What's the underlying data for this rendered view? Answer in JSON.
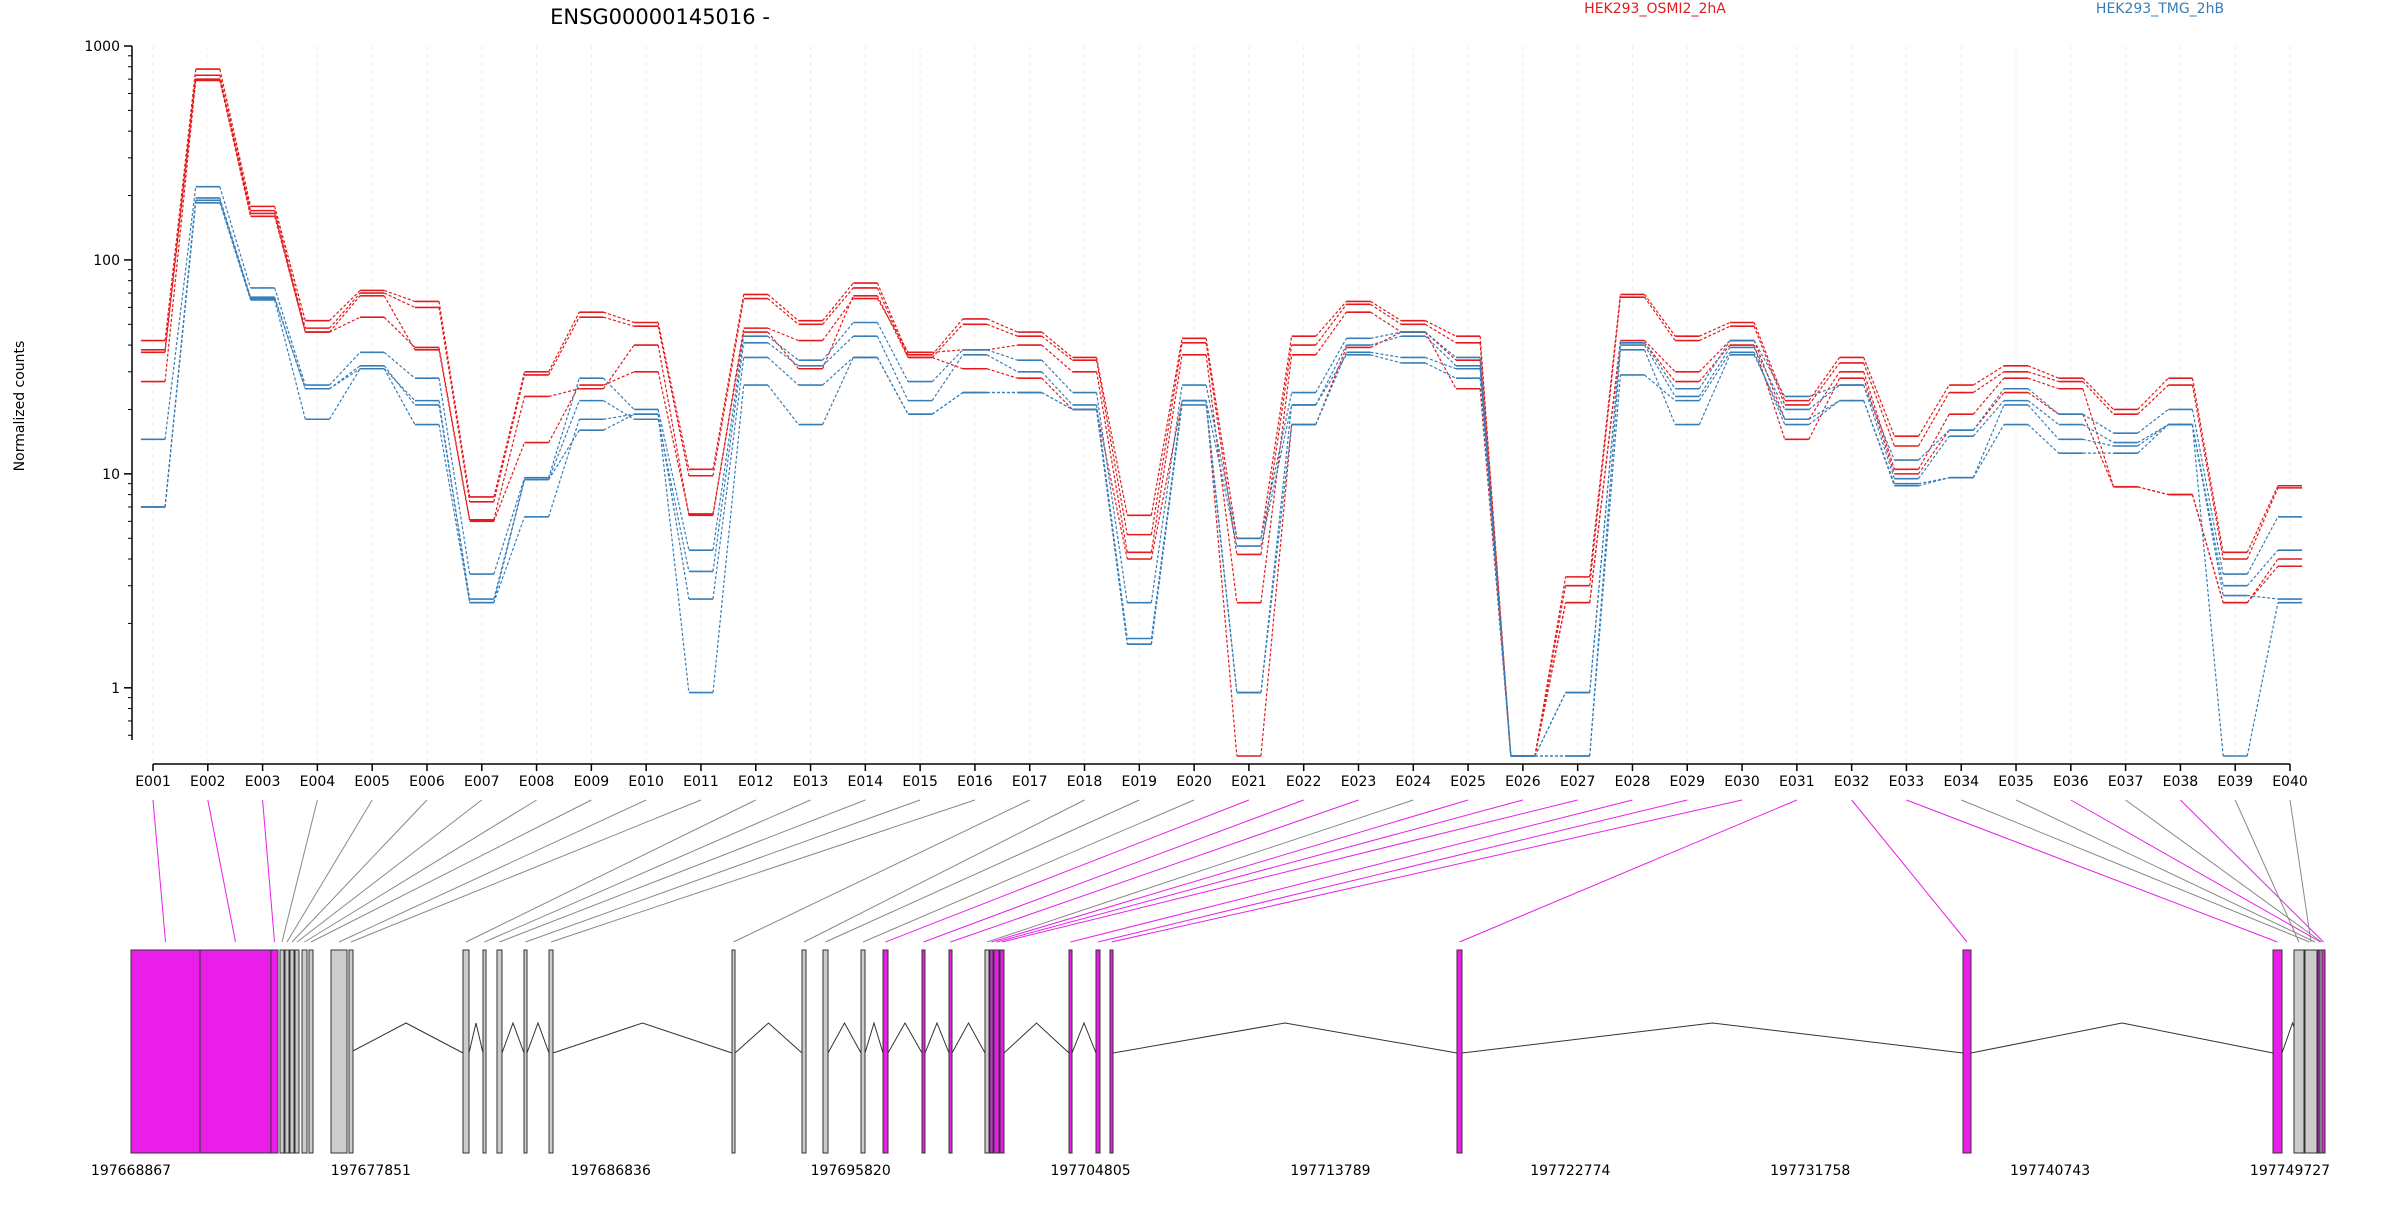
{
  "chart_data": {
    "type": "line",
    "title": "ENSG00000145016 -",
    "xlabel": "",
    "ylabel": "Normalized counts",
    "y_scale": "log",
    "ylim": [
      0.45,
      1000
    ],
    "y_ticks": [
      1,
      10,
      100,
      1000
    ],
    "y_tick_labels": [
      "1",
      "10",
      "100",
      "1000"
    ],
    "grid": "vertical lines at each exon, light",
    "legend_placement": "top, above plot",
    "categories": [
      "E001",
      "E002",
      "E003",
      "E004",
      "E005",
      "E006",
      "E007",
      "E008",
      "E009",
      "E010",
      "E011",
      "E012",
      "E013",
      "E014",
      "E015",
      "E016",
      "E017",
      "E018",
      "E019",
      "E020",
      "E021",
      "E022",
      "E023",
      "E024",
      "E025",
      "E026",
      "E027",
      "E028",
      "E029",
      "E030",
      "E031",
      "E032",
      "E033",
      "E034",
      "E035",
      "E036",
      "E037",
      "E038",
      "E039",
      "E040"
    ],
    "conditions": [
      {
        "name": "HEK293_OSMI2_2hA",
        "color": "#e41a1c"
      },
      {
        "name": "HEK293_TMG_2hB",
        "color": "#377eb8"
      }
    ],
    "series": [
      {
        "condition": "HEK293_OSMI2_2hA",
        "values": [
          42,
          780,
          178,
          52,
          72,
          64,
          7.8,
          30,
          57,
          51,
          10.5,
          69,
          52,
          78,
          36,
          53,
          46,
          35,
          6.4,
          43,
          5.0,
          44,
          64,
          52,
          44,
          0.48,
          3.3,
          69,
          44,
          51,
          22,
          35,
          15,
          26,
          32,
          28,
          20,
          28,
          4.3,
          8.8
        ]
      },
      {
        "condition": "HEK293_OSMI2_2hA",
        "values": [
          38,
          730,
          170,
          48,
          70,
          60,
          7.4,
          29,
          54,
          49,
          9.8,
          66,
          50,
          74,
          35,
          50,
          44,
          34,
          5.2,
          41,
          4.2,
          40,
          62,
          50,
          41,
          0.48,
          3.0,
          67,
          42,
          49,
          21,
          33,
          13.5,
          24,
          30,
          27,
          19,
          26,
          4.0,
          8.6
        ]
      },
      {
        "condition": "HEK293_OSMI2_2hA",
        "values": [
          27,
          690,
          160,
          46,
          54,
          39,
          6.1,
          23,
          25,
          40,
          6.4,
          48,
          42,
          66,
          37,
          38,
          40,
          30,
          4.3,
          36,
          2.5,
          36,
          57,
          46,
          25,
          0.48,
          2.5,
          42,
          30,
          42,
          18,
          30,
          10.5,
          19,
          28,
          25,
          8.7,
          8.0,
          2.5,
          4.0
        ]
      },
      {
        "condition": "HEK293_OSMI2_2hA",
        "values": [
          37,
          700,
          165,
          46,
          68,
          38,
          6.0,
          14,
          26,
          30,
          6.5,
          46,
          31,
          68,
          35,
          31,
          28,
          20,
          4.0,
          22,
          0.48,
          17,
          39,
          46,
          34,
          0.48,
          2.5,
          41,
          27,
          40,
          14.5,
          28,
          10,
          16,
          24,
          19,
          8.7,
          8.0,
          2.5,
          3.7
        ]
      },
      {
        "condition": "HEK293_TMG_2hB",
        "values": [
          14.5,
          220,
          74,
          26,
          37,
          28,
          3.4,
          9.6,
          28,
          20,
          4.4,
          44,
          34,
          51,
          27,
          38,
          34,
          24,
          2.5,
          26,
          5.0,
          24,
          43,
          46,
          35,
          0.48,
          0.95,
          41,
          25,
          42,
          23,
          26,
          11.6,
          16,
          25,
          19,
          15.5,
          20,
          3.4,
          6.3
        ]
      },
      {
        "condition": "HEK293_TMG_2hB",
        "values": [
          7.0,
          195,
          67,
          25,
          32,
          21,
          2.6,
          9.4,
          22,
          18,
          3.5,
          41,
          32,
          44,
          22,
          36,
          30,
          21,
          1.7,
          22,
          4.6,
          21,
          40,
          44,
          32,
          0.48,
          0.95,
          40,
          23,
          39,
          20,
          26,
          9.5,
          15,
          22,
          17,
          14,
          17,
          3.0,
          4.4
        ]
      },
      {
        "condition": "HEK293_TMG_2hB",
        "values": [
          7.0,
          185,
          65,
          18,
          31,
          17,
          2.5,
          6.3,
          18,
          19,
          2.6,
          35,
          26,
          35,
          19,
          24,
          24,
          20,
          1.6,
          21,
          0.95,
          17,
          37,
          35,
          31,
          0.48,
          0.48,
          38,
          17,
          36,
          18,
          22,
          9.0,
          9.6,
          17,
          12.5,
          12.5,
          17,
          0.48,
          2.5
        ]
      },
      {
        "condition": "HEK293_TMG_2hB",
        "values": [
          7.0,
          190,
          66,
          25,
          31,
          22,
          2.5,
          9.4,
          16,
          19,
          0.95,
          26,
          17,
          35,
          19,
          24,
          24,
          20,
          1.6,
          22,
          0.95,
          21,
          36,
          33,
          28,
          0.48,
          0.48,
          29,
          22,
          37,
          17,
          22,
          8.8,
          9.6,
          21,
          14.5,
          13.5,
          17,
          2.7,
          2.6
        ]
      }
    ],
    "exon_highlight_color": "#e91fe9",
    "genomic_axis_labels": [
      "197668867",
      "197677851",
      "197686836",
      "197695820",
      "197704805",
      "197713789",
      "197722774",
      "197731758",
      "197740743",
      "197749727"
    ],
    "exon_highlighted": [
      true,
      true,
      true,
      false,
      false,
      false,
      false,
      false,
      false,
      false,
      false,
      false,
      false,
      false,
      false,
      false,
      false,
      false,
      false,
      false,
      true,
      true,
      true,
      false,
      true,
      true,
      true,
      true,
      true,
      true,
      true,
      true,
      true,
      false,
      false,
      true,
      false,
      true,
      false,
      false
    ]
  }
}
